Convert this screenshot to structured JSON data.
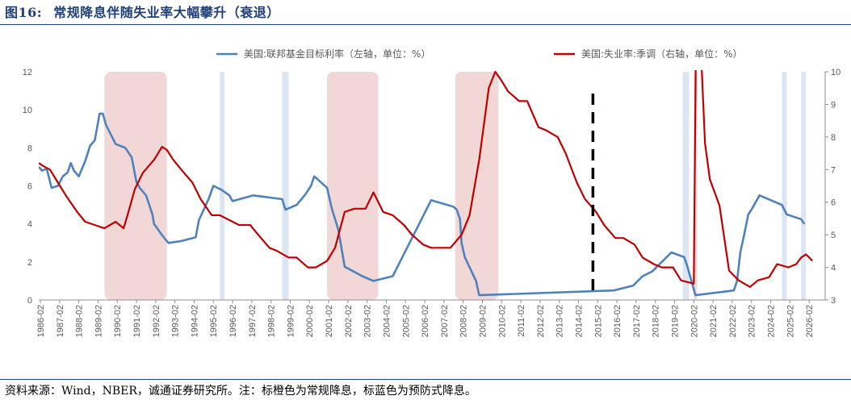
{
  "header": {
    "figure_label": "图16:",
    "title": "常规降息伴随失业率大幅攀升（衰退）"
  },
  "footer": {
    "source": "资料来源：Wind，NBER，诚通证券研究所。注：标橙色为常规降息，标蓝色为预防式降息。"
  },
  "colors": {
    "title": "#1f3f7a",
    "fed_funds": "#4f81bd",
    "unemployment": "#c00000",
    "recession_band": "#f2d7d7",
    "preventive_band": "#dce6f2",
    "marker": "#000000"
  },
  "chart_data": {
    "type": "line",
    "x_range": [
      "1986-01",
      "2026-12"
    ],
    "left_axis": {
      "range": [
        0,
        12
      ],
      "ticks": [
        0,
        2,
        4,
        6,
        8,
        10,
        12
      ]
    },
    "right_axis": {
      "range": [
        3,
        10
      ],
      "ticks": [
        3,
        4,
        5,
        6,
        7,
        8,
        9,
        10
      ]
    },
    "x_tick_labels": [
      "1986-02",
      "1987-02",
      "1988-02",
      "1989-02",
      "1990-02",
      "1991-02",
      "1992-02",
      "1993-02",
      "1994-02",
      "1995-02",
      "1996-02",
      "1997-02",
      "1998-02",
      "1999-02",
      "2000-02",
      "2001-02",
      "2002-02",
      "2003-02",
      "2004-02",
      "2005-02",
      "2006-02",
      "2007-02",
      "2008-02",
      "2009-02",
      "2010-02",
      "2011-02",
      "2012-02",
      "2013-02",
      "2014-02",
      "2015-02",
      "2016-02",
      "2017-02",
      "2018-02",
      "2019-02",
      "2020-02",
      "2021-02",
      "2022-02",
      "2023-02",
      "2024-02",
      "2025-02",
      "2026-02"
    ],
    "grid": false,
    "legend_position": "top",
    "series": [
      {
        "name": "美国:联邦基金目标利率（左轴，单位：%）",
        "axis": "left",
        "style": "fed_funds",
        "points": [
          [
            "1986-01",
            7.0
          ],
          [
            "1986-03",
            6.8
          ],
          [
            "1986-06",
            6.9
          ],
          [
            "1986-09",
            5.9
          ],
          [
            "1987-01",
            6.0
          ],
          [
            "1987-04",
            6.5
          ],
          [
            "1987-07",
            6.7
          ],
          [
            "1987-09",
            7.2
          ],
          [
            "1987-11",
            6.8
          ],
          [
            "1988-02",
            6.5
          ],
          [
            "1988-06",
            7.3
          ],
          [
            "1988-09",
            8.1
          ],
          [
            "1988-12",
            8.4
          ],
          [
            "1989-03",
            9.8
          ],
          [
            "1989-05",
            9.8
          ],
          [
            "1989-07",
            9.2
          ],
          [
            "1989-10",
            8.7
          ],
          [
            "1990-01",
            8.2
          ],
          [
            "1990-07",
            8.0
          ],
          [
            "1990-11",
            7.5
          ],
          [
            "1991-02",
            6.2
          ],
          [
            "1991-04",
            5.9
          ],
          [
            "1991-08",
            5.5
          ],
          [
            "1991-12",
            4.5
          ],
          [
            "1992-01",
            4.0
          ],
          [
            "1992-07",
            3.3
          ],
          [
            "1992-10",
            3.0
          ],
          [
            "1993-06",
            3.1
          ],
          [
            "1994-03",
            3.3
          ],
          [
            "1994-05",
            4.2
          ],
          [
            "1994-11",
            5.3
          ],
          [
            "1995-02",
            6.0
          ],
          [
            "1995-07",
            5.8
          ],
          [
            "1995-12",
            5.5
          ],
          [
            "1996-02",
            5.2
          ],
          [
            "1997-03",
            5.5
          ],
          [
            "1998-09",
            5.3
          ],
          [
            "1998-11",
            4.75
          ],
          [
            "1999-06",
            5.0
          ],
          [
            "1999-11",
            5.5
          ],
          [
            "2000-03",
            6.0
          ],
          [
            "2000-05",
            6.5
          ],
          [
            "2001-01",
            5.9
          ],
          [
            "2001-04",
            4.8
          ],
          [
            "2001-08",
            3.7
          ],
          [
            "2001-12",
            1.75
          ],
          [
            "2002-11",
            1.25
          ],
          [
            "2003-06",
            1.0
          ],
          [
            "2004-06",
            1.25
          ],
          [
            "2004-12",
            2.25
          ],
          [
            "2005-06",
            3.25
          ],
          [
            "2005-12",
            4.25
          ],
          [
            "2006-06",
            5.25
          ],
          [
            "2007-08",
            4.9
          ],
          [
            "2007-10",
            4.75
          ],
          [
            "2007-12",
            4.25
          ],
          [
            "2008-01",
            3.0
          ],
          [
            "2008-03",
            2.25
          ],
          [
            "2008-10",
            1.0
          ],
          [
            "2008-12",
            0.25
          ],
          [
            "2015-12",
            0.5
          ],
          [
            "2016-12",
            0.75
          ],
          [
            "2017-06",
            1.25
          ],
          [
            "2017-12",
            1.5
          ],
          [
            "2018-06",
            2.0
          ],
          [
            "2018-12",
            2.5
          ],
          [
            "2019-08",
            2.25
          ],
          [
            "2019-10",
            1.75
          ],
          [
            "2020-03",
            0.25
          ],
          [
            "2022-03",
            0.5
          ],
          [
            "2022-05",
            1.0
          ],
          [
            "2022-07",
            2.5
          ],
          [
            "2022-09",
            3.25
          ],
          [
            "2022-12",
            4.5
          ],
          [
            "2023-02",
            4.75
          ],
          [
            "2023-07",
            5.5
          ],
          [
            "2024-09",
            5.0
          ],
          [
            "2024-12",
            4.5
          ],
          [
            "2025-09",
            4.25
          ],
          [
            "2025-11",
            4.0
          ]
        ]
      },
      {
        "name": "美国:失业率:季调（右轴，单位：%）",
        "axis": "right",
        "style": "unemployment",
        "points": [
          [
            "1986-01",
            7.2
          ],
          [
            "1986-04",
            7.1
          ],
          [
            "1986-08",
            7.0
          ],
          [
            "1987-01",
            6.6
          ],
          [
            "1987-06",
            6.2
          ],
          [
            "1988-01",
            5.7
          ],
          [
            "1988-06",
            5.4
          ],
          [
            "1988-12",
            5.3
          ],
          [
            "1989-06",
            5.2
          ],
          [
            "1990-01",
            5.4
          ],
          [
            "1990-06",
            5.2
          ],
          [
            "1990-09",
            5.7
          ],
          [
            "1991-01",
            6.4
          ],
          [
            "1991-06",
            6.9
          ],
          [
            "1992-01",
            7.3
          ],
          [
            "1992-06",
            7.7
          ],
          [
            "1992-09",
            7.6
          ],
          [
            "1993-01",
            7.3
          ],
          [
            "1993-06",
            7.0
          ],
          [
            "1994-01",
            6.6
          ],
          [
            "1994-06",
            6.1
          ],
          [
            "1995-01",
            5.6
          ],
          [
            "1995-06",
            5.6
          ],
          [
            "1996-06",
            5.3
          ],
          [
            "1997-01",
            5.3
          ],
          [
            "1997-06",
            5.0
          ],
          [
            "1998-01",
            4.6
          ],
          [
            "1998-06",
            4.5
          ],
          [
            "1999-01",
            4.3
          ],
          [
            "1999-06",
            4.3
          ],
          [
            "2000-01",
            4.0
          ],
          [
            "2000-06",
            4.0
          ],
          [
            "2001-01",
            4.2
          ],
          [
            "2001-06",
            4.6
          ],
          [
            "2001-12",
            5.7
          ],
          [
            "2002-06",
            5.8
          ],
          [
            "2003-01",
            5.8
          ],
          [
            "2003-06",
            6.3
          ],
          [
            "2003-12",
            5.7
          ],
          [
            "2004-06",
            5.6
          ],
          [
            "2005-01",
            5.3
          ],
          [
            "2005-06",
            5.0
          ],
          [
            "2006-01",
            4.7
          ],
          [
            "2006-06",
            4.6
          ],
          [
            "2007-01",
            4.6
          ],
          [
            "2007-06",
            4.6
          ],
          [
            "2008-01",
            5.0
          ],
          [
            "2008-06",
            5.6
          ],
          [
            "2008-12",
            7.3
          ],
          [
            "2009-06",
            9.5
          ],
          [
            "2009-10",
            10.0
          ],
          [
            "2010-01",
            9.8
          ],
          [
            "2010-06",
            9.4
          ],
          [
            "2011-01",
            9.1
          ],
          [
            "2011-06",
            9.1
          ],
          [
            "2012-01",
            8.3
          ],
          [
            "2012-06",
            8.2
          ],
          [
            "2013-01",
            8.0
          ],
          [
            "2013-06",
            7.5
          ],
          [
            "2014-01",
            6.6
          ],
          [
            "2014-06",
            6.1
          ],
          [
            "2015-01",
            5.7
          ],
          [
            "2015-06",
            5.3
          ],
          [
            "2016-01",
            4.9
          ],
          [
            "2016-06",
            4.9
          ],
          [
            "2017-01",
            4.7
          ],
          [
            "2017-06",
            4.3
          ],
          [
            "2018-01",
            4.1
          ],
          [
            "2018-06",
            4.0
          ],
          [
            "2019-01",
            4.0
          ],
          [
            "2019-06",
            3.6
          ],
          [
            "2020-02",
            3.5
          ],
          [
            "2020-04",
            14.7
          ],
          [
            "2020-06",
            11.1
          ],
          [
            "2020-09",
            7.8
          ],
          [
            "2020-12",
            6.7
          ],
          [
            "2021-06",
            5.9
          ],
          [
            "2021-12",
            3.9
          ],
          [
            "2022-06",
            3.6
          ],
          [
            "2023-01",
            3.4
          ],
          [
            "2023-06",
            3.6
          ],
          [
            "2024-01",
            3.7
          ],
          [
            "2024-06",
            4.1
          ],
          [
            "2025-01",
            4.0
          ],
          [
            "2025-06",
            4.1
          ],
          [
            "2025-09",
            4.3
          ],
          [
            "2025-12",
            4.4
          ],
          [
            "2026-02",
            4.3
          ],
          [
            "2026-04",
            4.2
          ]
        ]
      }
    ],
    "recession_bands": [
      [
        "1989-06",
        "1992-09"
      ],
      [
        "2001-01",
        "2003-09"
      ],
      [
        "2007-09",
        "2009-12"
      ],
      [
        "2020-02",
        "2020-04"
      ]
    ],
    "preventive_bands": [
      [
        "1995-06",
        "1995-09"
      ],
      [
        "1998-09",
        "1999-01"
      ],
      [
        "2019-07",
        "2019-11"
      ],
      [
        "2024-09",
        "2024-12"
      ],
      [
        "2025-09",
        "2025-12"
      ]
    ],
    "marker_date": "2014-11"
  }
}
